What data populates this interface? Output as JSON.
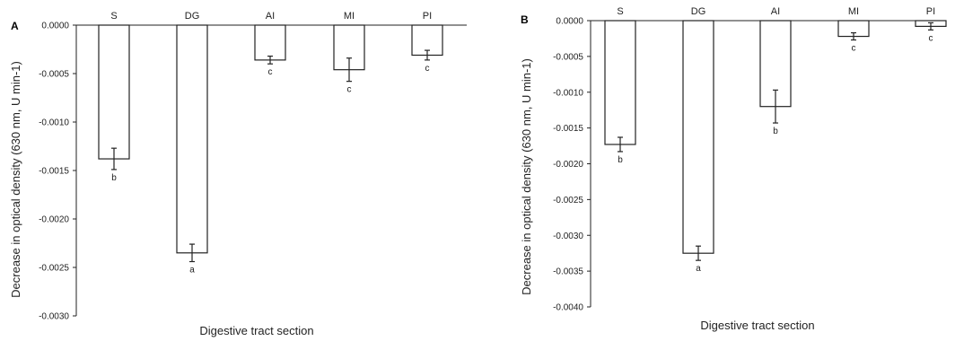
{
  "chart_data": [
    {
      "type": "bar",
      "panel_label": "A",
      "categories": [
        "S",
        "DG",
        "AI",
        "MI",
        "PI"
      ],
      "values": [
        -0.00138,
        -0.00235,
        -0.00036,
        -0.00046,
        -0.00031
      ],
      "errors": [
        0.00011,
        9e-05,
        4e-05,
        0.00012,
        5e-05
      ],
      "significance": [
        "b",
        "a",
        "c",
        "c",
        "c"
      ],
      "xlabel": "Digestive tract section",
      "ylabel": "Decrease in optical density (630 nm, U min-1)",
      "ylim": [
        -0.003,
        0
      ],
      "yticks": [
        0,
        -0.0005,
        -0.001,
        -0.0015,
        -0.002,
        -0.0025,
        -0.003
      ],
      "ytick_labels": [
        "0.0000",
        "-0.0005",
        "-0.0010",
        "-0.0015",
        "-0.0020",
        "-0.0025",
        "-0.0030"
      ],
      "grid": false
    },
    {
      "type": "bar",
      "panel_label": "B",
      "categories": [
        "S",
        "DG",
        "AI",
        "MI",
        "PI"
      ],
      "values": [
        -0.00173,
        -0.00325,
        -0.0012,
        -0.00022,
        -8e-05
      ],
      "errors": [
        0.0001,
        0.0001,
        0.00023,
        5e-05,
        5e-05
      ],
      "significance": [
        "b",
        "a",
        "b",
        "c",
        "c"
      ],
      "xlabel": "Digestive tract section",
      "ylabel": "Decrease in optical density (630 nm, U min-1)",
      "ylim": [
        -0.004,
        0
      ],
      "yticks": [
        0,
        -0.0005,
        -0.001,
        -0.0015,
        -0.002,
        -0.0025,
        -0.003,
        -0.0035,
        -0.004
      ],
      "ytick_labels": [
        "0.0000",
        "-0.0005",
        "-0.0010",
        "-0.0015",
        "-0.0020",
        "-0.0025",
        "-0.0030",
        "-0.0035",
        "-0.0040"
      ],
      "grid": false
    }
  ]
}
